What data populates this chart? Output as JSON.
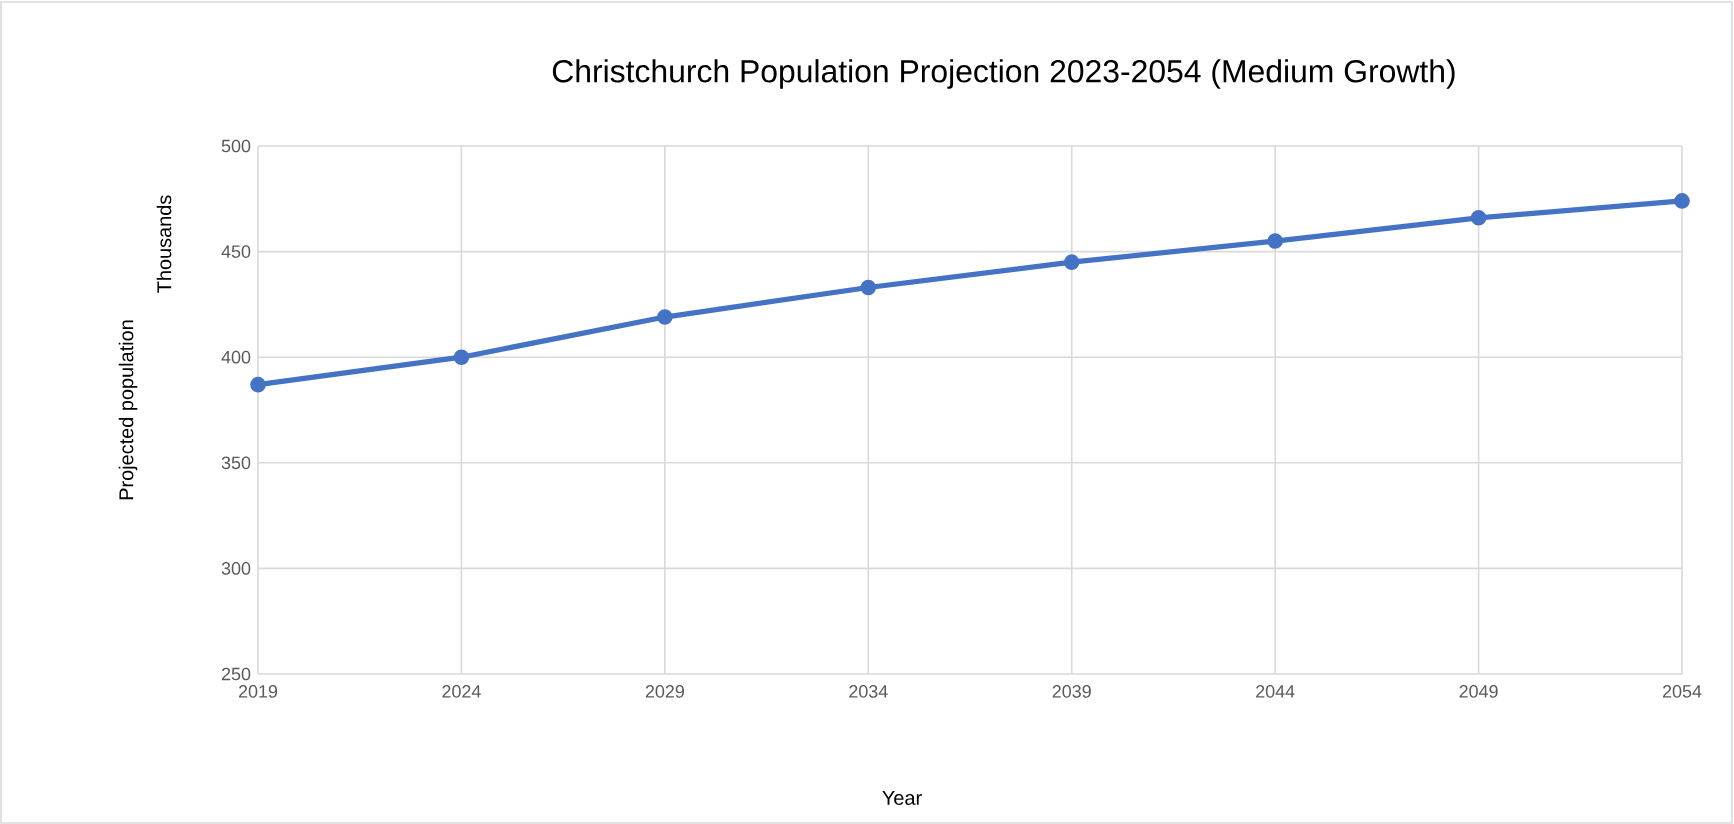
{
  "chart_data": {
    "type": "line",
    "title": "Christchurch Population Projection 2023-2054 (Medium Growth)",
    "xlabel": "Year",
    "ylabel": "Projected population",
    "annotations": [
      "Thousands"
    ],
    "x": [
      2019,
      2024,
      2029,
      2034,
      2039,
      2044,
      2049,
      2054
    ],
    "series": [
      {
        "color": "#4472c4",
        "values": [
          387,
          400,
          419,
          433,
          445,
          455,
          466,
          474
        ]
      }
    ],
    "xlim": [
      2019,
      2054
    ],
    "xticks": [
      2019,
      2024,
      2029,
      2034,
      2039,
      2044,
      2049,
      2054
    ],
    "ylim": [
      250,
      500
    ],
    "yticks": [
      250,
      300,
      350,
      400,
      450,
      500
    ],
    "grid": true,
    "marker": "circle",
    "line_style": "solid"
  }
}
